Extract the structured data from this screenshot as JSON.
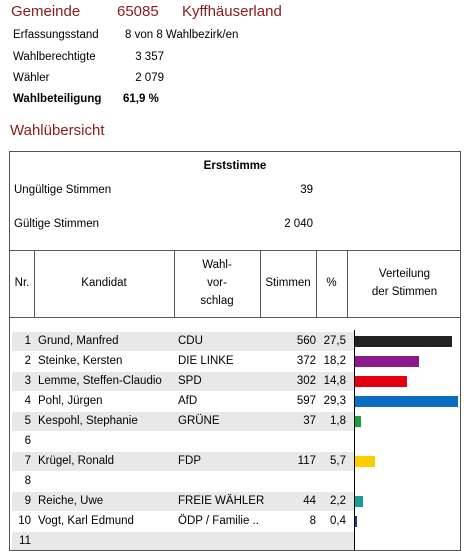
{
  "header": {
    "label": "Gemeinde",
    "code": "65085",
    "name": "Kyffhäuserland"
  },
  "info": {
    "erfassung_label": "Erfassungsstand",
    "erfassung_value": "8 von 8 Wahlbezirk/en",
    "berechtigte_label": "Wahlberechtigte",
    "berechtigte_value": "3 357",
    "waehler_label": "Wähler",
    "waehler_value": "2 079",
    "beteiligung_label": "Wahlbeteiligung",
    "beteiligung_value": "61,9 %"
  },
  "section_title": "Wahlübersicht",
  "table": {
    "title": "Erststimme",
    "ungueltig_label": "Ungültige Stimmen",
    "ungueltig_value": "39",
    "gueltig_label": "Gültige Stimmen",
    "gueltig_value": "2 040",
    "col_nr": "Nr.",
    "col_kandidat": "Kandidat",
    "col_wahl_1": "Wahl-",
    "col_wahl_2": "vor-",
    "col_wahl_3": "schlag",
    "col_stimmen": "Stimmen",
    "col_pct": "%",
    "col_vert_1": "Verteilung",
    "col_vert_2": "der Stimmen",
    "rows": [
      {
        "nr": "1",
        "name": "Grund, Manfred",
        "party": "CDU",
        "votes": "560",
        "pct": "27,5",
        "share": 27.5,
        "color": "#222222"
      },
      {
        "nr": "2",
        "name": "Steinke, Kersten",
        "party": "DIE LINKE",
        "votes": "372",
        "pct": "18,2",
        "share": 18.2,
        "color": "#8b1a8b"
      },
      {
        "nr": "3",
        "name": "Lemme, Steffen-Claudio",
        "party": "SPD",
        "votes": "302",
        "pct": "14,8",
        "share": 14.8,
        "color": "#e3000f"
      },
      {
        "nr": "4",
        "name": "Pohl, Jürgen",
        "party": "AfD",
        "votes": "597",
        "pct": "29,3",
        "share": 29.3,
        "color": "#0a6fc2"
      },
      {
        "nr": "5",
        "name": "Kespohl, Stephanie",
        "party": "GRÜNE",
        "votes": "37",
        "pct": "1,8",
        "share": 1.8,
        "color": "#1aa037"
      },
      {
        "nr": "6",
        "name": "",
        "party": "",
        "votes": "",
        "pct": "",
        "share": 0,
        "color": "#ffffff"
      },
      {
        "nr": "7",
        "name": "Krügel, Ronald",
        "party": "FDP",
        "votes": "117",
        "pct": "5,7",
        "share": 5.7,
        "color": "#ffcc00"
      },
      {
        "nr": "8",
        "name": "",
        "party": "",
        "votes": "",
        "pct": "",
        "share": 0,
        "color": "#ffffff"
      },
      {
        "nr": "9",
        "name": "Reiche, Uwe",
        "party": "FREIE WÄHLER",
        "votes": "44",
        "pct": "2,2",
        "share": 2.2,
        "color": "#1a9a9a"
      },
      {
        "nr": "10",
        "name": "Vogt, Karl Edmund",
        "party": "ÖDP / Familie ..",
        "votes": "8",
        "pct": "0,4",
        "share": 0.4,
        "color": "#1a3a8b"
      },
      {
        "nr": "11",
        "name": "",
        "party": "",
        "votes": "",
        "pct": "",
        "share": 0,
        "color": "#ffffff"
      }
    ]
  }
}
